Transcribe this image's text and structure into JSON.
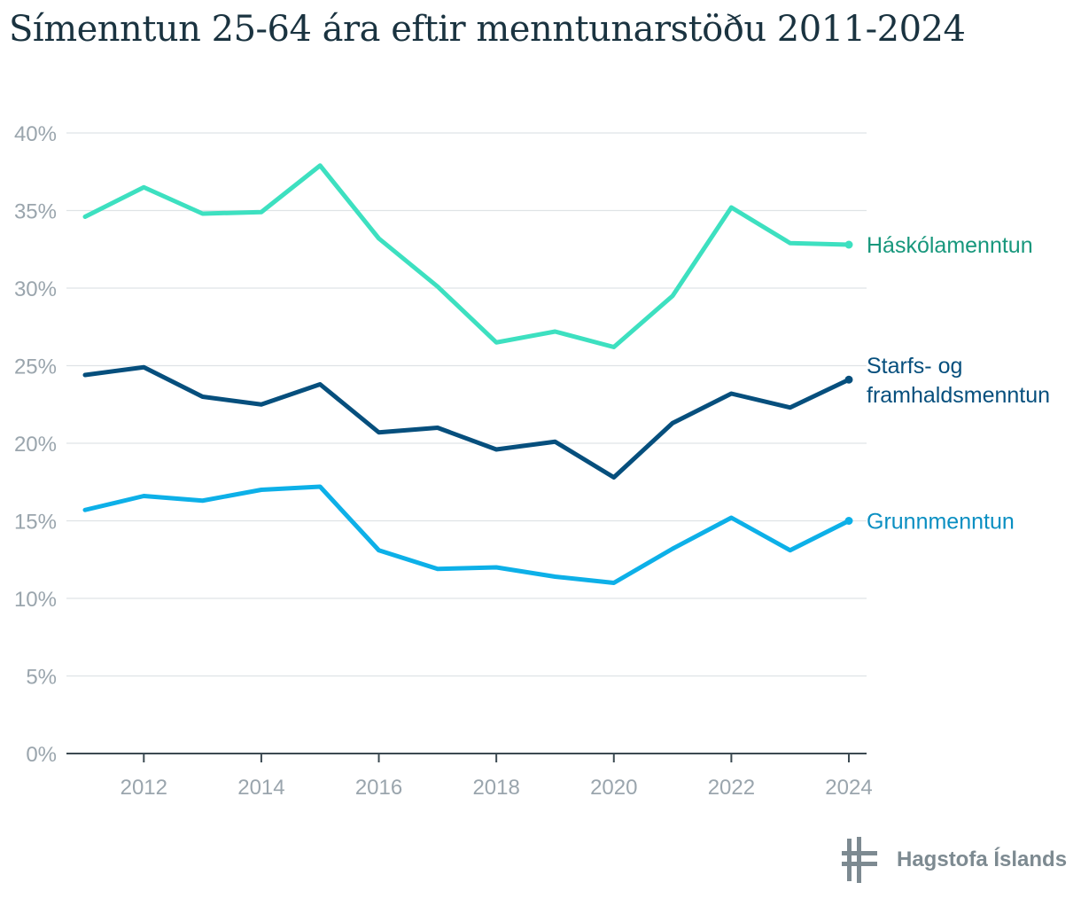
{
  "title": "Símenntun 25-64 ára eftir menntunarstöðu 2011-2024",
  "logo_text": "Hagstofa Íslands",
  "chart_data": {
    "type": "line",
    "title": "Símenntun 25-64 ára eftir menntunarstöðu 2011-2024",
    "x": [
      2011,
      2012,
      2013,
      2014,
      2015,
      2016,
      2017,
      2018,
      2019,
      2020,
      2021,
      2022,
      2023,
      2024
    ],
    "x_ticks": [
      "2012",
      "2014",
      "2016",
      "2018",
      "2020",
      "2022",
      "2024"
    ],
    "y_ticks": [
      "0%",
      "5%",
      "10%",
      "15%",
      "20%",
      "25%",
      "30%",
      "35%",
      "40%"
    ],
    "ylim": [
      0,
      40
    ],
    "grid": true,
    "series": [
      {
        "name": "Háskólamenntun",
        "label_lines": [
          "Háskólamenntun"
        ],
        "color": "#3de0c0",
        "label_color": "#17977c",
        "values": [
          34.6,
          36.5,
          34.8,
          34.9,
          37.9,
          33.2,
          30.1,
          26.5,
          27.2,
          26.2,
          29.5,
          35.2,
          32.9,
          32.8
        ]
      },
      {
        "name": "Starfs- og framhaldsmenntun",
        "label_lines": [
          "Starfs- og",
          "framhaldsmenntun"
        ],
        "color": "#064f7d",
        "label_color": "#064f7d",
        "values": [
          24.4,
          24.9,
          23.0,
          22.5,
          23.8,
          20.7,
          21.0,
          19.6,
          20.1,
          17.8,
          21.3,
          23.2,
          22.3,
          24.1
        ]
      },
      {
        "name": "Grunnmenntun",
        "label_lines": [
          "Grunnmenntun"
        ],
        "color": "#0db0e8",
        "label_color": "#0a8fc2",
        "values": [
          15.7,
          16.6,
          16.3,
          17.0,
          17.2,
          13.1,
          11.9,
          12.0,
          11.4,
          11.0,
          13.2,
          15.2,
          13.1,
          15.0
        ]
      }
    ]
  }
}
